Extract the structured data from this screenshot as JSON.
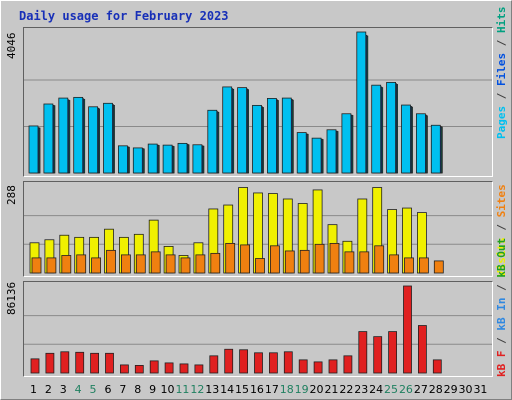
{
  "title": "Daily usage for February 2023",
  "colors": {
    "pages": "#00c0f0",
    "files": "#0050e0",
    "hits": "#00a080",
    "visits": "#f0f000",
    "sites": "#f08010",
    "kb_in": "#3088e0",
    "kb_out": "#20a020",
    "kb_f": "#e02020",
    "weekend_tick": "#208060",
    "weekday_tick": "#000000"
  },
  "panel_labels": {
    "top": [
      {
        "text": "Pages",
        "color": "#00c0f0"
      },
      {
        "text": " / ",
        "color": "#404040"
      },
      {
        "text": "Files",
        "color": "#0050e0"
      },
      {
        "text": " / ",
        "color": "#404040"
      },
      {
        "text": "Hits",
        "color": "#00a080"
      }
    ],
    "middle": [
      {
        "text": "Visits",
        "color": "#f0f000"
      },
      {
        "text": " / ",
        "color": "#404040"
      },
      {
        "text": "Sites",
        "color": "#f08010"
      }
    ],
    "bottom": [
      {
        "text": "kB F",
        "color": "#e02020"
      },
      {
        "text": " / ",
        "color": "#404040"
      },
      {
        "text": "kB In",
        "color": "#3088e0"
      },
      {
        "text": " / ",
        "color": "#404040"
      },
      {
        "text": "kB Out",
        "color": "#20a020"
      }
    ]
  },
  "chart_data": [
    {
      "type": "bar",
      "title": "Daily usage for February 2023",
      "ymax_label": "4046",
      "ylim": [
        0,
        4046
      ],
      "x": [
        1,
        2,
        3,
        4,
        5,
        6,
        7,
        8,
        9,
        10,
        11,
        12,
        13,
        14,
        15,
        16,
        17,
        18,
        19,
        20,
        21,
        22,
        23,
        24,
        25,
        26,
        27,
        28
      ],
      "series": [
        {
          "name": "Pages",
          "values": [
            1350,
            1980,
            2150,
            2170,
            1900,
            2000,
            780,
            720,
            830,
            800,
            850,
            810,
            1800,
            2470,
            2450,
            1940,
            2140,
            2150,
            1160,
            1000,
            1240,
            1700,
            4046,
            2520,
            2600,
            1950,
            1700,
            1370
          ]
        },
        {
          "name": "Files",
          "values": [
            1300,
            1940,
            2100,
            2130,
            1860,
            1960,
            750,
            700,
            800,
            770,
            820,
            780,
            1760,
            2420,
            2410,
            1900,
            2100,
            2110,
            1120,
            970,
            1200,
            1660,
            3950,
            2470,
            2560,
            1910,
            1660,
            1330
          ]
        },
        {
          "name": "Hits",
          "values": [
            1290,
            1930,
            2080,
            2110,
            1840,
            1940,
            740,
            690,
            790,
            760,
            810,
            770,
            1740,
            2400,
            2390,
            1880,
            2080,
            2090,
            1110,
            960,
            1190,
            1650,
            3930,
            2450,
            2540,
            1890,
            1640,
            1320
          ]
        }
      ]
    },
    {
      "type": "bar",
      "ymax_label": "288",
      "ylim": [
        0,
        288
      ],
      "x": [
        1,
        2,
        3,
        4,
        5,
        6,
        7,
        8,
        9,
        10,
        11,
        12,
        13,
        14,
        15,
        16,
        17,
        18,
        19,
        20,
        21,
        22,
        23,
        24,
        25,
        26,
        27,
        28
      ],
      "series": [
        {
          "name": "Visits",
          "values": [
            100,
            110,
            125,
            118,
            118,
            145,
            118,
            128,
            175,
            88,
            58,
            100,
            212,
            225,
            283,
            265,
            263,
            245,
            230,
            275,
            160,
            105,
            245,
            283,
            210,
            215,
            200,
            0
          ]
        },
        {
          "name": "Sites",
          "values": [
            50,
            50,
            58,
            60,
            50,
            75,
            60,
            60,
            70,
            60,
            50,
            60,
            65,
            98,
            93,
            48,
            90,
            73,
            75,
            95,
            98,
            70,
            70,
            90,
            60,
            50,
            50,
            40
          ]
        }
      ]
    },
    {
      "type": "bar",
      "ymax_label": "86136",
      "ylim": [
        0,
        86136
      ],
      "x": [
        1,
        2,
        3,
        4,
        5,
        6,
        7,
        8,
        9,
        10,
        11,
        12,
        13,
        14,
        15,
        16,
        17,
        18,
        19,
        20,
        21,
        22,
        23,
        24,
        25,
        26,
        27,
        28
      ],
      "series": [
        {
          "name": "kB F",
          "values": [
            14000,
            19500,
            21000,
            20500,
            19500,
            19500,
            8000,
            7500,
            12000,
            10000,
            9000,
            8000,
            17000,
            23500,
            23000,
            20000,
            20000,
            21000,
            13000,
            11000,
            13000,
            17000,
            41000,
            36000,
            41000,
            86136,
            47000,
            13000
          ]
        }
      ]
    }
  ],
  "x_ticks": [
    "1",
    "2",
    "3",
    "4",
    "5",
    "6",
    "7",
    "8",
    "9",
    "10",
    "11",
    "12",
    "13",
    "14",
    "15",
    "16",
    "17",
    "18",
    "19",
    "20",
    "21",
    "22",
    "23",
    "24",
    "25",
    "26",
    "27",
    "28",
    "29",
    "30",
    "31"
  ],
  "weekend_days": [
    4,
    5,
    11,
    12,
    18,
    19,
    25,
    26
  ]
}
